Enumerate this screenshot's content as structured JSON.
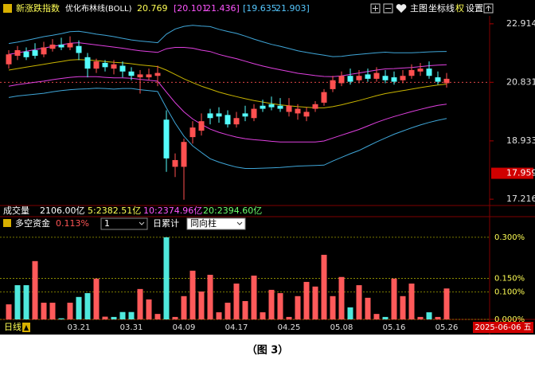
{
  "header": {
    "title": "新涨跌指数",
    "indicator": "优化布林线(BOLL)",
    "values": [
      "20.769",
      "[20.101",
      "21.436]",
      "[19.635",
      "21.903]"
    ],
    "buttons": [
      "主图",
      "坐标线",
      "权",
      "设置"
    ]
  },
  "volume": {
    "label": "成交量",
    "total": "2106.00亿",
    "ma": [
      "5:2382.51亿",
      "10:2374.96亿",
      "20:2394.60亿"
    ]
  },
  "chart_data": [
    {
      "type": "candlestick",
      "log": true,
      "ylim": [
        17.04,
        23.15
      ],
      "yticks": [
        17.216,
        18.933,
        20.831,
        22.914
      ],
      "marker": 17.959,
      "ref_line": 20.831,
      "up_color": "#ff5050",
      "down_color": "#54fcfc",
      "open": [
        21.45,
        21.75,
        21.9,
        21.95,
        21.8,
        22.0,
        22.15,
        22.05,
        22.1,
        21.7,
        21.3,
        21.5,
        21.3,
        21.4,
        21.2,
        21.0,
        21.0,
        21.05,
        19.6,
        18.15,
        18.15,
        19.05,
        19.25,
        19.8,
        19.8,
        19.75,
        19.45,
        19.8,
        19.65,
        20.05,
        20.1,
        20.05,
        19.85,
        19.8,
        19.7,
        19.95,
        20.15,
        20.6,
        20.8,
        21.05,
        20.9,
        21.1,
        20.95,
        21.05,
        21.0,
        20.9,
        21.05,
        21.2,
        21.3,
        21.0,
        20.8
      ],
      "high": [
        21.95,
        22.1,
        22.05,
        22.2,
        22.25,
        22.35,
        22.4,
        22.45,
        22.3,
        21.85,
        21.65,
        21.6,
        21.6,
        21.55,
        21.35,
        21.25,
        21.3,
        21.4,
        19.9,
        18.55,
        19.0,
        19.55,
        19.8,
        19.95,
        20.0,
        19.9,
        19.85,
        20.05,
        20.1,
        20.25,
        20.35,
        20.3,
        20.3,
        20.1,
        20.0,
        20.2,
        20.6,
        21.05,
        21.2,
        21.3,
        21.25,
        21.3,
        21.35,
        21.25,
        21.2,
        21.25,
        21.45,
        21.5,
        21.55,
        21.2,
        21.15
      ],
      "low": [
        21.3,
        21.6,
        21.6,
        21.65,
        21.7,
        21.9,
        21.95,
        21.95,
        21.6,
        21.0,
        21.15,
        21.2,
        21.1,
        21.0,
        20.9,
        20.45,
        20.9,
        20.7,
        18.0,
        17.85,
        17.2,
        18.85,
        19.1,
        19.45,
        19.5,
        19.35,
        19.35,
        19.55,
        19.55,
        19.85,
        19.9,
        19.85,
        19.7,
        19.6,
        19.55,
        19.85,
        20.05,
        20.5,
        20.7,
        20.75,
        20.8,
        20.85,
        20.85,
        20.8,
        20.75,
        20.8,
        20.95,
        21.05,
        20.95,
        20.75,
        20.65
      ],
      "close": [
        21.8,
        21.95,
        21.7,
        21.75,
        22.05,
        22.15,
        22.05,
        22.2,
        21.85,
        21.3,
        21.55,
        21.35,
        21.45,
        21.2,
        21.05,
        21.1,
        21.1,
        21.15,
        18.4,
        18.35,
        18.9,
        19.35,
        19.55,
        19.65,
        19.7,
        19.45,
        19.65,
        19.7,
        19.95,
        19.95,
        20.0,
        19.95,
        20.05,
        19.95,
        19.85,
        20.1,
        20.5,
        20.9,
        21.05,
        20.85,
        21.05,
        20.95,
        21.15,
        20.9,
        20.85,
        21.05,
        21.25,
        21.3,
        21.05,
        20.85,
        20.95
      ],
      "bands": [
        {
          "color": "#3fa6d8",
          "values": [
            22.19,
            22.24,
            22.3,
            22.37,
            22.44,
            22.49,
            22.55,
            22.62,
            22.64,
            22.59,
            22.53,
            22.49,
            22.44,
            22.38,
            22.32,
            22.28,
            22.25,
            22.22,
            22.53,
            22.72,
            22.82,
            22.86,
            22.83,
            22.81,
            22.71,
            22.63,
            22.56,
            22.46,
            22.35,
            22.25,
            22.16,
            22.09,
            22.01,
            21.93,
            21.87,
            21.82,
            21.77,
            21.72,
            21.73,
            21.77,
            21.8,
            21.83,
            21.86,
            21.88,
            21.86,
            21.86,
            21.86,
            21.87,
            21.89,
            21.9,
            21.903
          ]
        },
        {
          "color": "#e040e0",
          "values": [
            21.8,
            21.85,
            21.91,
            21.97,
            22.03,
            22.08,
            22.14,
            22.2,
            22.22,
            22.18,
            22.14,
            22.1,
            22.06,
            22.02,
            21.97,
            21.93,
            21.9,
            21.87,
            22.0,
            22.05,
            22.05,
            22.02,
            21.95,
            21.9,
            21.8,
            21.72,
            21.65,
            21.56,
            21.47,
            21.39,
            21.32,
            21.26,
            21.2,
            21.14,
            21.1,
            21.06,
            21.03,
            21.02,
            21.05,
            21.1,
            21.15,
            21.2,
            21.25,
            21.29,
            21.3,
            21.32,
            21.34,
            21.37,
            21.4,
            21.42,
            21.436
          ]
        },
        {
          "color": "#c8b400",
          "values": [
            21.25,
            21.3,
            21.35,
            21.4,
            21.45,
            21.5,
            21.55,
            21.6,
            21.62,
            21.6,
            21.58,
            21.55,
            21.52,
            21.5,
            21.47,
            21.43,
            21.4,
            21.37,
            21.25,
            21.1,
            20.95,
            20.82,
            20.7,
            20.6,
            20.5,
            20.42,
            20.35,
            20.28,
            20.22,
            20.17,
            20.12,
            20.08,
            20.05,
            20.02,
            20.0,
            19.98,
            19.98,
            20.02,
            20.08,
            20.15,
            20.22,
            20.3,
            20.38,
            20.45,
            20.5,
            20.55,
            20.6,
            20.65,
            20.7,
            20.74,
            20.769
          ]
        },
        {
          "color": "#e040e0",
          "values": [
            20.7,
            20.75,
            20.79,
            20.83,
            20.87,
            20.92,
            20.96,
            21.0,
            21.02,
            21.02,
            21.02,
            21.0,
            20.98,
            20.98,
            20.97,
            20.93,
            20.9,
            20.87,
            20.5,
            20.15,
            19.85,
            19.62,
            19.45,
            19.3,
            19.2,
            19.12,
            19.05,
            19.0,
            18.97,
            18.95,
            18.92,
            18.9,
            18.9,
            18.9,
            18.9,
            18.9,
            18.93,
            19.02,
            19.11,
            19.2,
            19.29,
            19.4,
            19.51,
            19.61,
            19.7,
            19.78,
            19.86,
            19.93,
            20.0,
            20.06,
            20.101
          ]
        },
        {
          "color": "#3fa6d8",
          "values": [
            20.32,
            20.37,
            20.4,
            20.43,
            20.46,
            20.51,
            20.55,
            20.58,
            20.6,
            20.61,
            20.63,
            20.62,
            20.6,
            20.62,
            20.62,
            20.58,
            20.55,
            20.52,
            19.98,
            19.49,
            19.08,
            18.78,
            18.58,
            18.39,
            18.29,
            18.21,
            18.14,
            18.1,
            18.1,
            18.11,
            18.12,
            18.13,
            18.15,
            18.17,
            18.18,
            18.19,
            18.2,
            18.32,
            18.43,
            18.54,
            18.64,
            18.77,
            18.9,
            19.02,
            19.14,
            19.24,
            19.34,
            19.43,
            19.51,
            19.58,
            19.635
          ]
        }
      ]
    },
    {
      "type": "bar",
      "title": "多空资金",
      "current_label": "0.113%",
      "controls": [
        "1",
        "日累计",
        "同向柱"
      ],
      "grid": true,
      "ylim": [
        0,
        0.323
      ],
      "yticks": [
        {
          "value": 0,
          "label": "0.000%"
        },
        {
          "value": 0.1,
          "label": "0.100%"
        },
        {
          "value": 0.15,
          "label": "0.150%"
        },
        {
          "value": 0.3,
          "label": "0.300%"
        }
      ],
      "categories": [
        null,
        null,
        null,
        null,
        null,
        null,
        null,
        null,
        "03.21",
        null,
        null,
        null,
        null,
        null,
        "03.31",
        null,
        null,
        null,
        null,
        null,
        "04.09",
        null,
        null,
        null,
        null,
        null,
        "04.17",
        null,
        null,
        null,
        null,
        null,
        "04.25",
        null,
        null,
        null,
        null,
        null,
        "05.08",
        null,
        null,
        null,
        null,
        null,
        "05.16",
        null,
        null,
        null,
        null,
        null,
        "05.26"
      ],
      "values": [
        0.055,
        0.125,
        0.125,
        0.213,
        0.061,
        0.061,
        0.004,
        0.061,
        0.082,
        0.096,
        0.149,
        0.01,
        0.009,
        0.027,
        0.027,
        0.111,
        0.073,
        0.02,
        0.3,
        0.009,
        0.085,
        0.178,
        0.102,
        0.163,
        0.026,
        0.061,
        0.131,
        0.067,
        0.16,
        0.026,
        0.108,
        0.096,
        0.009,
        0.085,
        0.137,
        0.12,
        0.236,
        0.085,
        0.155,
        0.044,
        0.125,
        0.079,
        0.02,
        0.009,
        0.149,
        0.085,
        0.131,
        0.009,
        0.026,
        0.009,
        0.113
      ],
      "colors": [
        "#ff5a5a",
        "#4fe8dc",
        "#4fe8dc",
        "#ff5a5a",
        "#ff5a5a",
        "#ff5a5a",
        "#4fe8dc",
        "#ff5a5a",
        "#4fe8dc",
        "#4fe8dc",
        "#ff5a5a",
        "#ff5a5a",
        "#4fe8dc",
        "#4fe8dc",
        "#4fe8dc",
        "#ff5a5a",
        "#ff5a5a",
        "#ff5a5a",
        "#4fe8dc",
        "#ff5a5a",
        "#ff5a5a",
        "#ff5a5a",
        "#ff5a5a",
        "#ff5a5a",
        "#ff5a5a",
        "#ff5a5a",
        "#ff5a5a",
        "#ff5a5a",
        "#ff5a5a",
        "#ff5a5a",
        "#ff5a5a",
        "#ff5a5a",
        "#ff5a5a",
        "#ff5a5a",
        "#ff5a5a",
        "#ff5a5a",
        "#ff5a5a",
        "#ff5a5a",
        "#ff5a5a",
        "#4fe8dc",
        "#ff5a5a",
        "#ff5a5a",
        "#ff5a5a",
        "#4fe8dc",
        "#ff5a5a",
        "#ff5a5a",
        "#ff5a5a",
        "#ff5a5a",
        "#4fe8dc",
        "#ff5a5a",
        "#ff5a5a"
      ]
    }
  ],
  "footer": {
    "period": "日线",
    "cursor_date": "2025-06-06 五",
    "caption": "（图 3）"
  }
}
